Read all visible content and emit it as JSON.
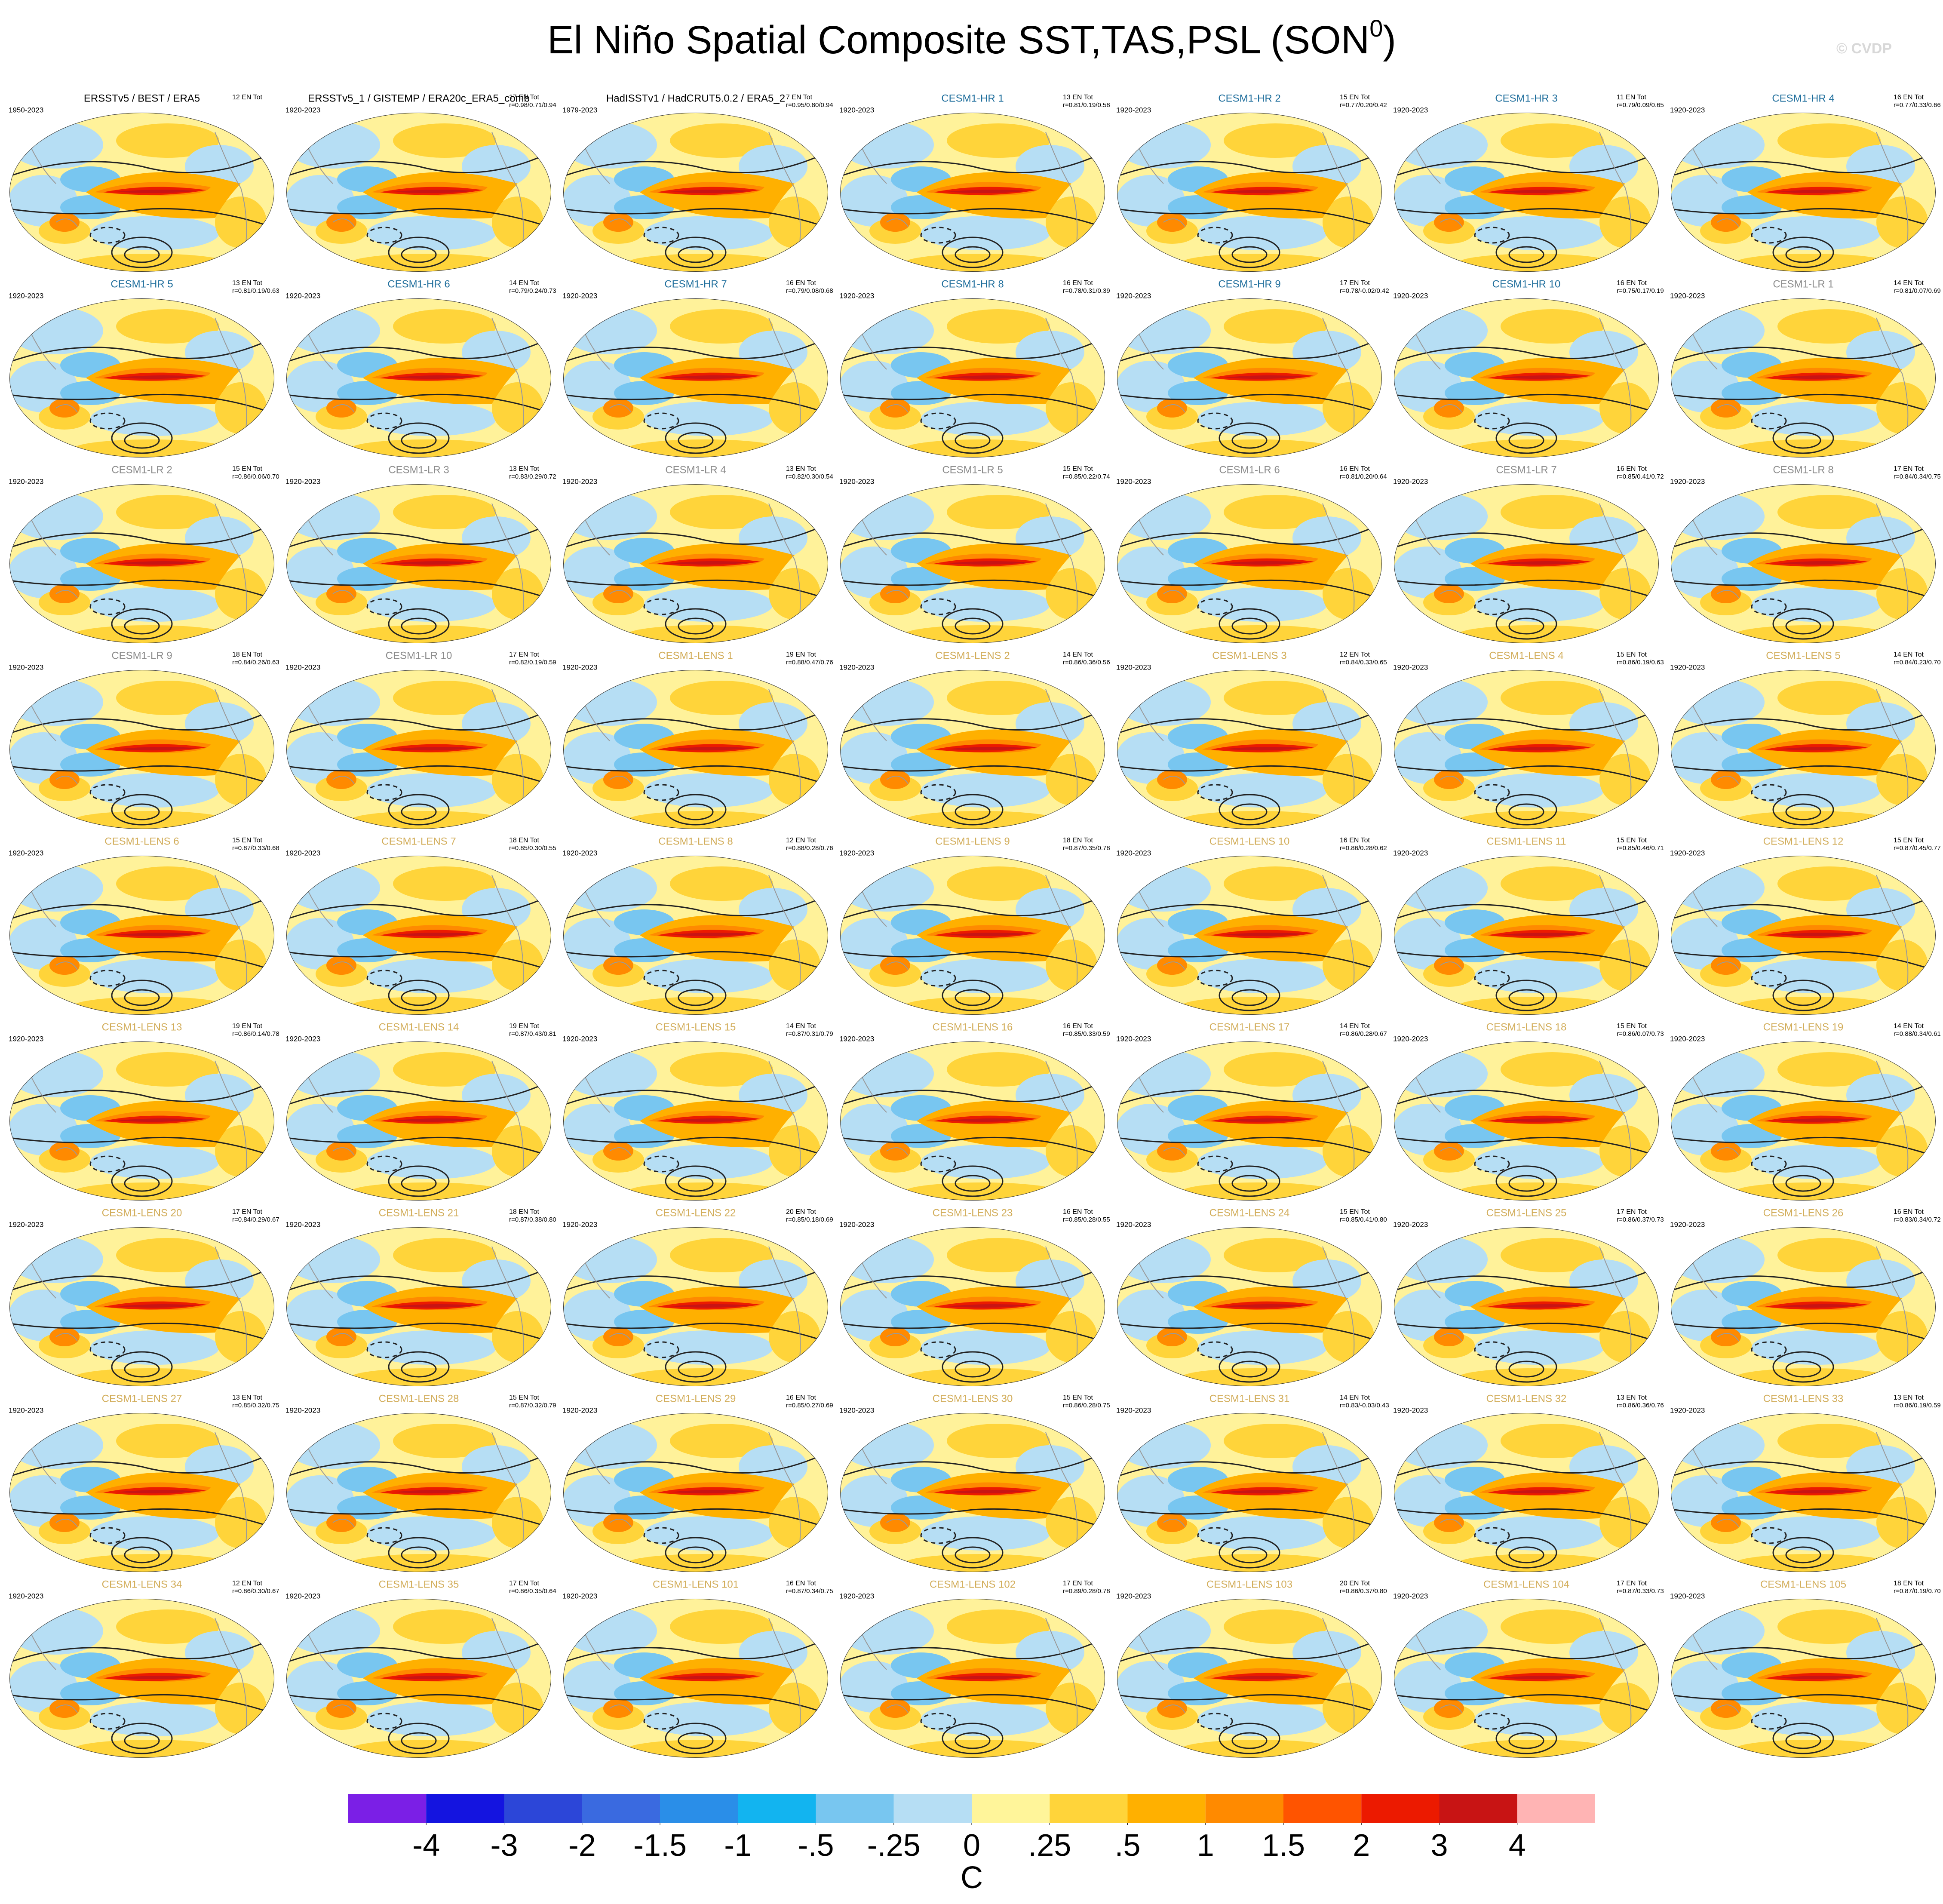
{
  "title": [
    "El Niño Spatial Composite SST,TAS,PSL (SON",
    "0",
    ")"
  ],
  "watermark": "© CVDP",
  "panels": [
    {
      "title": "ERSSTv5 / BEST / ERA5",
      "period": "1950-2023",
      "count": "12 EN Tot",
      "color": "#000000"
    },
    {
      "title": "ERSSTv5_1 / GISTEMP / ERA20c_ERA5_comb",
      "period": "1920-2023",
      "count": "17 EN Tot",
      "r": "r=0.98/0.71/0.94",
      "color": "#000000"
    },
    {
      "title": "HadISSTv1 / HadCRUT5.0.2 / ERA5_2",
      "period": "1979-2023",
      "count": "7 EN Tot",
      "r": "r=0.95/0.80/0.94",
      "color": "#000000"
    },
    {
      "title": "CESM1-HR 1",
      "period": "1920-2023",
      "count": "13 EN Tot",
      "r": "r=0.81/0.19/0.58",
      "color": "#1f6e9c"
    },
    {
      "title": "CESM1-HR 2",
      "period": "1920-2023",
      "count": "15 EN Tot",
      "r": "r=0.77/0.20/0.42",
      "color": "#1f6e9c"
    },
    {
      "title": "CESM1-HR 3",
      "period": "1920-2023",
      "count": "11 EN Tot",
      "r": "r=0.79/0.09/0.65",
      "color": "#1f6e9c"
    },
    {
      "title": "CESM1-HR 4",
      "period": "1920-2023",
      "count": "16 EN Tot",
      "r": "r=0.77/0.33/0.66",
      "color": "#1f6e9c"
    },
    {
      "title": "CESM1-HR 5",
      "period": "1920-2023",
      "count": "13 EN Tot",
      "r": "r=0.81/0.19/0.63",
      "color": "#1f6e9c"
    },
    {
      "title": "CESM1-HR 6",
      "period": "1920-2023",
      "count": "14 EN Tot",
      "r": "r=0.79/0.24/0.73",
      "color": "#1f6e9c"
    },
    {
      "title": "CESM1-HR 7",
      "period": "1920-2023",
      "count": "16 EN Tot",
      "r": "r=0.79/0.08/0.68",
      "color": "#1f6e9c"
    },
    {
      "title": "CESM1-HR 8",
      "period": "1920-2023",
      "count": "16 EN Tot",
      "r": "r=0.78/0.31/0.39",
      "color": "#1f6e9c"
    },
    {
      "title": "CESM1-HR 9",
      "period": "1920-2023",
      "count": "17 EN Tot",
      "r": "r=0.78/-0.02/0.42",
      "color": "#1f6e9c"
    },
    {
      "title": "CESM1-HR 10",
      "period": "1920-2023",
      "count": "16 EN Tot",
      "r": "r=0.75/0.17/0.19",
      "color": "#1f6e9c"
    },
    {
      "title": "CESM1-LR 1",
      "period": "1920-2023",
      "count": "14 EN Tot",
      "r": "r=0.81/0.07/0.69",
      "color": "#8c8c8c"
    },
    {
      "title": "CESM1-LR 2",
      "period": "1920-2023",
      "count": "15 EN Tot",
      "r": "r=0.86/0.06/0.70",
      "color": "#8c8c8c"
    },
    {
      "title": "CESM1-LR 3",
      "period": "1920-2023",
      "count": "13 EN Tot",
      "r": "r=0.83/0.29/0.72",
      "color": "#8c8c8c"
    },
    {
      "title": "CESM1-LR 4",
      "period": "1920-2023",
      "count": "13 EN Tot",
      "r": "r=0.82/0.30/0.54",
      "color": "#8c8c8c"
    },
    {
      "title": "CESM1-LR 5",
      "period": "1920-2023",
      "count": "15 EN Tot",
      "r": "r=0.85/0.22/0.74",
      "color": "#8c8c8c"
    },
    {
      "title": "CESM1-LR 6",
      "period": "1920-2023",
      "count": "16 EN Tot",
      "r": "r=0.81/0.20/0.64",
      "color": "#8c8c8c"
    },
    {
      "title": "CESM1-LR 7",
      "period": "1920-2023",
      "count": "16 EN Tot",
      "r": "r=0.85/0.41/0.72",
      "color": "#8c8c8c"
    },
    {
      "title": "CESM1-LR 8",
      "period": "1920-2023",
      "count": "17 EN Tot",
      "r": "r=0.84/0.34/0.75",
      "color": "#8c8c8c"
    },
    {
      "title": "CESM1-LR 9",
      "period": "1920-2023",
      "count": "18 EN Tot",
      "r": "r=0.84/0.26/0.63",
      "color": "#8c8c8c"
    },
    {
      "title": "CESM1-LR 10",
      "period": "1920-2023",
      "count": "17 EN Tot",
      "r": "r=0.82/0.19/0.59",
      "color": "#8c8c8c"
    },
    {
      "title": "CESM1-LENS 1",
      "period": "1920-2023",
      "count": "19 EN Tot",
      "r": "r=0.88/0.47/0.76",
      "color": "#d2ad5a"
    },
    {
      "title": "CESM1-LENS 2",
      "period": "1920-2023",
      "count": "14 EN Tot",
      "r": "r=0.86/0.36/0.56",
      "color": "#d2ad5a"
    },
    {
      "title": "CESM1-LENS 3",
      "period": "1920-2023",
      "count": "12 EN Tot",
      "r": "r=0.84/0.33/0.65",
      "color": "#d2ad5a"
    },
    {
      "title": "CESM1-LENS 4",
      "period": "1920-2023",
      "count": "15 EN Tot",
      "r": "r=0.86/0.19/0.63",
      "color": "#d2ad5a"
    },
    {
      "title": "CESM1-LENS 5",
      "period": "1920-2023",
      "count": "14 EN Tot",
      "r": "r=0.84/0.23/0.70",
      "color": "#d2ad5a"
    },
    {
      "title": "CESM1-LENS 6",
      "period": "1920-2023",
      "count": "15 EN Tot",
      "r": "r=0.87/0.33/0.68",
      "color": "#d2ad5a"
    },
    {
      "title": "CESM1-LENS 7",
      "period": "1920-2023",
      "count": "18 EN Tot",
      "r": "r=0.85/0.30/0.55",
      "color": "#d2ad5a"
    },
    {
      "title": "CESM1-LENS 8",
      "period": "1920-2023",
      "count": "12 EN Tot",
      "r": "r=0.88/0.28/0.76",
      "color": "#d2ad5a"
    },
    {
      "title": "CESM1-LENS 9",
      "period": "1920-2023",
      "count": "18 EN Tot",
      "r": "r=0.87/0.35/0.78",
      "color": "#d2ad5a"
    },
    {
      "title": "CESM1-LENS 10",
      "period": "1920-2023",
      "count": "16 EN Tot",
      "r": "r=0.86/0.28/0.62",
      "color": "#d2ad5a"
    },
    {
      "title": "CESM1-LENS 11",
      "period": "1920-2023",
      "count": "15 EN Tot",
      "r": "r=0.85/0.46/0.71",
      "color": "#d2ad5a"
    },
    {
      "title": "CESM1-LENS 12",
      "period": "1920-2023",
      "count": "15 EN Tot",
      "r": "r=0.87/0.45/0.77",
      "color": "#d2ad5a"
    },
    {
      "title": "CESM1-LENS 13",
      "period": "1920-2023",
      "count": "19 EN Tot",
      "r": "r=0.86/0.14/0.78",
      "color": "#d2ad5a"
    },
    {
      "title": "CESM1-LENS 14",
      "period": "1920-2023",
      "count": "19 EN Tot",
      "r": "r=0.87/0.43/0.81",
      "color": "#d2ad5a"
    },
    {
      "title": "CESM1-LENS 15",
      "period": "1920-2023",
      "count": "14 EN Tot",
      "r": "r=0.87/0.31/0.79",
      "color": "#d2ad5a"
    },
    {
      "title": "CESM1-LENS 16",
      "period": "1920-2023",
      "count": "16 EN Tot",
      "r": "r=0.85/0.33/0.59",
      "color": "#d2ad5a"
    },
    {
      "title": "CESM1-LENS 17",
      "period": "1920-2023",
      "count": "14 EN Tot",
      "r": "r=0.86/0.28/0.67",
      "color": "#d2ad5a"
    },
    {
      "title": "CESM1-LENS 18",
      "period": "1920-2023",
      "count": "15 EN Tot",
      "r": "r=0.86/0.07/0.73",
      "color": "#d2ad5a"
    },
    {
      "title": "CESM1-LENS 19",
      "period": "1920-2023",
      "count": "14 EN Tot",
      "r": "r=0.88/0.34/0.61",
      "color": "#d2ad5a"
    },
    {
      "title": "CESM1-LENS 20",
      "period": "1920-2023",
      "count": "17 EN Tot",
      "r": "r=0.84/0.29/0.67",
      "color": "#d2ad5a"
    },
    {
      "title": "CESM1-LENS 21",
      "period": "1920-2023",
      "count": "18 EN Tot",
      "r": "r=0.87/0.38/0.80",
      "color": "#d2ad5a"
    },
    {
      "title": "CESM1-LENS 22",
      "period": "1920-2023",
      "count": "20 EN Tot",
      "r": "r=0.85/0.18/0.69",
      "color": "#d2ad5a"
    },
    {
      "title": "CESM1-LENS 23",
      "period": "1920-2023",
      "count": "16 EN Tot",
      "r": "r=0.85/0.28/0.55",
      "color": "#d2ad5a"
    },
    {
      "title": "CESM1-LENS 24",
      "period": "1920-2023",
      "count": "15 EN Tot",
      "r": "r=0.85/0.41/0.80",
      "color": "#d2ad5a"
    },
    {
      "title": "CESM1-LENS 25",
      "period": "1920-2023",
      "count": "17 EN Tot",
      "r": "r=0.86/0.37/0.73",
      "color": "#d2ad5a"
    },
    {
      "title": "CESM1-LENS 26",
      "period": "1920-2023",
      "count": "16 EN Tot",
      "r": "r=0.83/0.34/0.72",
      "color": "#d2ad5a"
    },
    {
      "title": "CESM1-LENS 27",
      "period": "1920-2023",
      "count": "13 EN Tot",
      "r": "r=0.85/0.32/0.75",
      "color": "#d2ad5a"
    },
    {
      "title": "CESM1-LENS 28",
      "period": "1920-2023",
      "count": "15 EN Tot",
      "r": "r=0.87/0.32/0.79",
      "color": "#d2ad5a"
    },
    {
      "title": "CESM1-LENS 29",
      "period": "1920-2023",
      "count": "16 EN Tot",
      "r": "r=0.85/0.27/0.69",
      "color": "#d2ad5a"
    },
    {
      "title": "CESM1-LENS 30",
      "period": "1920-2023",
      "count": "15 EN Tot",
      "r": "r=0.86/0.28/0.75",
      "color": "#d2ad5a"
    },
    {
      "title": "CESM1-LENS 31",
      "period": "1920-2023",
      "count": "14 EN Tot",
      "r": "r=0.83/-0.03/0.43",
      "color": "#d2ad5a"
    },
    {
      "title": "CESM1-LENS 32",
      "period": "1920-2023",
      "count": "13 EN Tot",
      "r": "r=0.86/0.36/0.76",
      "color": "#d2ad5a"
    },
    {
      "title": "CESM1-LENS 33",
      "period": "1920-2023",
      "count": "13 EN Tot",
      "r": "r=0.86/0.19/0.59",
      "color": "#d2ad5a"
    },
    {
      "title": "CESM1-LENS 34",
      "period": "1920-2023",
      "count": "12 EN Tot",
      "r": "r=0.86/0.30/0.67",
      "color": "#d2ad5a"
    },
    {
      "title": "CESM1-LENS 35",
      "period": "1920-2023",
      "count": "17 EN Tot",
      "r": "r=0.86/0.35/0.64",
      "color": "#d2ad5a"
    },
    {
      "title": "CESM1-LENS 101",
      "period": "1920-2023",
      "count": "16 EN Tot",
      "r": "r=0.87/0.34/0.75",
      "color": "#d2ad5a"
    },
    {
      "title": "CESM1-LENS 102",
      "period": "1920-2023",
      "count": "17 EN Tot",
      "r": "r=0.89/0.28/0.78",
      "color": "#d2ad5a"
    },
    {
      "title": "CESM1-LENS 103",
      "period": "1920-2023",
      "count": "20 EN Tot",
      "r": "r=0.86/0.37/0.80",
      "color": "#d2ad5a"
    },
    {
      "title": "CESM1-LENS 104",
      "period": "1920-2023",
      "count": "17 EN Tot",
      "r": "r=0.87/0.33/0.73",
      "color": "#d2ad5a"
    },
    {
      "title": "CESM1-LENS 105",
      "period": "1920-2023",
      "count": "18 EN Tot",
      "r": "r=0.87/0.19/0.70",
      "color": "#d2ad5a"
    }
  ],
  "colorbar": {
    "unit": "C",
    "colors": [
      "#7b1fe6",
      "#1414e0",
      "#2c46d8",
      "#3a6ae0",
      "#2a8ee8",
      "#12b4f0",
      "#78c6f0",
      "#b6def4",
      "#fff59a",
      "#ffd43a",
      "#ffb000",
      "#ff8a00",
      "#ff5400",
      "#ec1a00",
      "#c81414",
      "#ffb4b4"
    ],
    "ticks": [
      -4,
      -3,
      -2,
      {
        "value": -1.5,
        "label": "-1.5"
      },
      -1,
      {
        "value": -0.5,
        "label": "-.5"
      },
      {
        "value": -0.25,
        "label": "-.25"
      },
      0,
      {
        "value": 0.25,
        "label": ".25"
      },
      {
        "value": 0.5,
        "label": ".5"
      },
      1,
      {
        "value": 1.5,
        "label": "1.5"
      },
      2,
      3,
      4
    ]
  }
}
